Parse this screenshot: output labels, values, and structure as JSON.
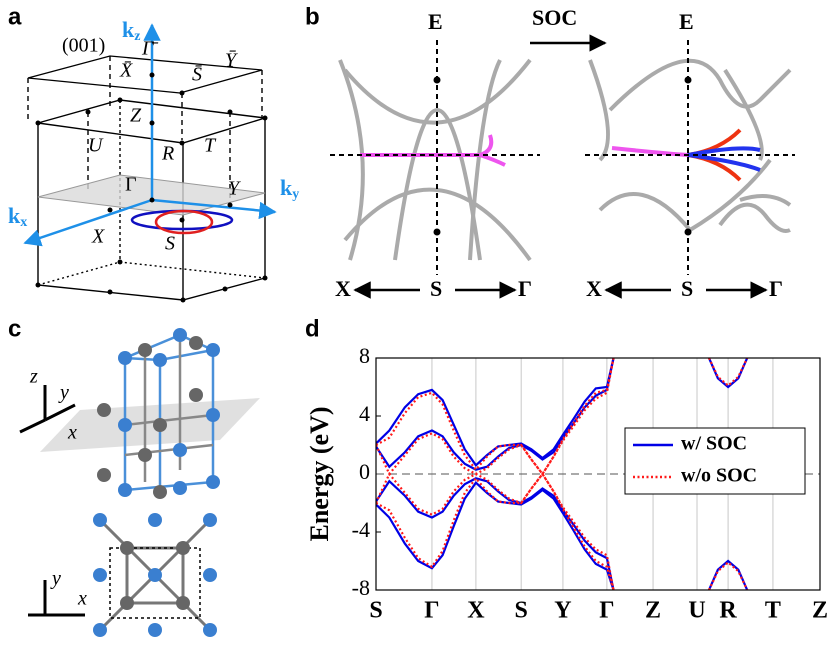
{
  "panels": {
    "a": {
      "label": "a",
      "surface": "(001)",
      "kz": {
        "main": "k",
        "sub": "z"
      },
      "ky": {
        "main": "k",
        "sub": "y"
      },
      "kx": {
        "main": "k",
        "sub": "x"
      },
      "points": {
        "gamma_bar": "Γ̄",
        "x_bar": "X̄",
        "s_bar": "S̄",
        "y_bar": "Ȳ",
        "z": "Z",
        "u": "U",
        "r": "R",
        "t": "T",
        "gamma": "Γ",
        "y": "Y",
        "x": "X",
        "s": "S"
      }
    },
    "b": {
      "label": "b",
      "soc": "SOC",
      "energy": [
        "E",
        "E"
      ],
      "left_path": [
        "X",
        "S",
        "Γ"
      ],
      "right_path": [
        "X",
        "S",
        "Γ"
      ]
    },
    "c": {
      "label": "c",
      "top_axes": [
        "z",
        "y",
        "x"
      ],
      "bottom_axes": [
        "y",
        "x"
      ]
    },
    "d": {
      "label": "d"
    }
  },
  "chart_data": {
    "type": "line",
    "ylabel": "Energy (eV)",
    "ylim": [
      -8,
      8
    ],
    "yticks": [
      -8,
      -4,
      0,
      4,
      8
    ],
    "xlim": [
      0,
      10
    ],
    "xticks": [
      {
        "value": 0,
        "label": "S"
      },
      {
        "value": 1.26,
        "label": "Γ"
      },
      {
        "value": 2.25,
        "label": "X"
      },
      {
        "value": 3.27,
        "label": "S"
      },
      {
        "value": 4.21,
        "label": "Y"
      },
      {
        "value": 5.2,
        "label": "Γ"
      },
      {
        "value": 6.24,
        "label": "Z"
      },
      {
        "value": 7.23,
        "label": "U"
      },
      {
        "value": 7.93,
        "label": "R"
      },
      {
        "value": 8.94,
        "label": "T"
      },
      {
        "value": 10,
        "label": "Z"
      }
    ],
    "grid": "x",
    "hline": 0,
    "legend": "right",
    "series": [
      {
        "name": "w/ SOC",
        "color": "#0000e6",
        "dash": "solid",
        "bands": [
          {
            "x": [
              0,
              0.3,
              0.65,
              0.95,
              1.26,
              1.5,
              1.75,
              2.0,
              2.25,
              2.5,
              2.75,
              3.0,
              3.27,
              3.5,
              3.75,
              4.0,
              4.21,
              4.45,
              4.7,
              4.95,
              5.2,
              5.35
            ],
            "values": [
              2.1,
              3.0,
              4.6,
              5.5,
              5.8,
              5.1,
              3.4,
              1.7,
              0.6,
              1.3,
              1.9,
              2.0,
              2.1,
              1.7,
              1.1,
              1.7,
              2.7,
              3.8,
              5.0,
              5.9,
              6.0,
              8
            ]
          },
          {
            "x": [
              0,
              0.3,
              0.65,
              0.95,
              1.26,
              1.5,
              1.75,
              2.0,
              2.25,
              2.5,
              2.75,
              3.0,
              3.27,
              3.5,
              3.75,
              4.0,
              4.21,
              4.45,
              4.7,
              4.95,
              5.2,
              5.35
            ],
            "values": [
              1.9,
              0.5,
              1.5,
              2.6,
              3.0,
              2.6,
              1.5,
              0.7,
              0.3,
              0.5,
              1.2,
              1.8,
              2.0,
              1.6,
              1.0,
              1.5,
              2.5,
              3.5,
              4.6,
              5.4,
              5.8,
              8
            ]
          },
          {
            "x": [
              0,
              0.3,
              0.65,
              0.95,
              1.26,
              1.5,
              1.75,
              2.0,
              2.25,
              2.5,
              2.75,
              3.0,
              3.27,
              3.5,
              3.75,
              4.0,
              4.21,
              4.45,
              4.7,
              4.95,
              5.2,
              5.35
            ],
            "values": [
              -1.9,
              -0.5,
              -1.5,
              -2.6,
              -3.0,
              -2.6,
              -1.5,
              -0.7,
              -0.3,
              -0.5,
              -1.2,
              -1.8,
              -2.0,
              -1.6,
              -1.0,
              -1.5,
              -2.5,
              -3.5,
              -4.6,
              -5.4,
              -5.8,
              -8
            ]
          },
          {
            "x": [
              0,
              0.3,
              0.65,
              0.95,
              1.26,
              1.5,
              1.75,
              2.0,
              2.25,
              2.5,
              2.75,
              3.0,
              3.27,
              3.5,
              3.75,
              4.0,
              4.21,
              4.45,
              4.7,
              4.95,
              5.2,
              5.35
            ],
            "values": [
              -2.1,
              -3.0,
              -4.8,
              -6.0,
              -6.5,
              -5.6,
              -3.6,
              -1.7,
              -0.6,
              -1.3,
              -1.9,
              -2.0,
              -2.1,
              -1.7,
              -1.1,
              -1.7,
              -2.7,
              -3.9,
              -5.2,
              -6.2,
              -6.6,
              -8
            ]
          },
          {
            "x": [
              7.5,
              7.7,
              7.93,
              8.16,
              8.36
            ],
            "values": [
              8,
              6.6,
              6.0,
              6.6,
              8
            ]
          },
          {
            "x": [
              7.5,
              7.7,
              7.93,
              8.16,
              8.36
            ],
            "values": [
              -8,
              -6.6,
              -6.0,
              -6.6,
              -8
            ]
          }
        ]
      },
      {
        "name": "w/o SOC",
        "color": "#ff1a1a",
        "dash": "dotted",
        "bands": [
          {
            "x": [
              0,
              0.3,
              0.65,
              0.95,
              1.26,
              1.5,
              1.75,
              2.0,
              2.25,
              2.5,
              2.75,
              3.0,
              3.27,
              3.5,
              3.75,
              4.0,
              4.21,
              4.45,
              4.7,
              4.95,
              5.2,
              5.35
            ],
            "values": [
              2.0,
              2.5,
              4.2,
              5.3,
              5.6,
              4.8,
              3.0,
              1.3,
              0.3,
              1.2,
              1.9,
              2.0,
              2.0,
              1.0,
              0.0,
              1.2,
              2.4,
              3.5,
              4.7,
              5.6,
              5.8,
              8
            ]
          },
          {
            "x": [
              0,
              0.3,
              0.65,
              0.95,
              1.26,
              1.5,
              1.75,
              2.0,
              2.25,
              2.5,
              2.75,
              3.0,
              3.27,
              3.5,
              3.75,
              4.0,
              4.21,
              4.45,
              4.7,
              4.95,
              5.2,
              5.35
            ],
            "values": [
              2.0,
              0.0,
              1.3,
              2.4,
              2.8,
              2.4,
              1.2,
              0.4,
              0.0,
              0.4,
              1.1,
              1.7,
              2.0,
              1.0,
              0.0,
              1.2,
              2.3,
              3.3,
              4.4,
              5.2,
              5.6,
              8
            ]
          },
          {
            "x": [
              0,
              0.3,
              0.65,
              0.95,
              1.26,
              1.5,
              1.75,
              2.0,
              2.25,
              2.5,
              2.75,
              3.0,
              3.27,
              3.5,
              3.75,
              4.0,
              4.21,
              4.45,
              4.7,
              4.95,
              5.2,
              5.35
            ],
            "values": [
              -2.0,
              0.0,
              -1.3,
              -2.4,
              -2.8,
              -2.4,
              -1.2,
              -0.4,
              0.0,
              -0.4,
              -1.1,
              -1.7,
              -2.0,
              -1.0,
              0.0,
              -1.2,
              -2.3,
              -3.3,
              -4.4,
              -5.2,
              -5.6,
              -8
            ]
          },
          {
            "x": [
              0,
              0.3,
              0.65,
              0.95,
              1.26,
              1.5,
              1.75,
              2.0,
              2.25,
              2.5,
              2.75,
              3.0,
              3.27,
              3.5,
              3.75,
              4.0,
              4.21,
              4.45,
              4.7,
              4.95,
              5.2,
              5.35
            ],
            "values": [
              -2.0,
              -2.5,
              -4.4,
              -5.8,
              -6.4,
              -5.3,
              -3.2,
              -1.3,
              -0.3,
              -1.2,
              -1.9,
              -2.0,
              -2.0,
              -1.0,
              0.0,
              -1.2,
              -2.4,
              -3.7,
              -5.0,
              -6.0,
              -6.4,
              -8
            ]
          },
          {
            "x": [
              7.5,
              7.7,
              7.93,
              8.16,
              8.36
            ],
            "values": [
              8,
              6.7,
              6.1,
              6.7,
              8
            ]
          },
          {
            "x": [
              7.5,
              7.7,
              7.93,
              8.16,
              8.36
            ],
            "values": [
              -8,
              -6.7,
              -6.1,
              -6.7,
              -8
            ]
          }
        ]
      }
    ]
  }
}
